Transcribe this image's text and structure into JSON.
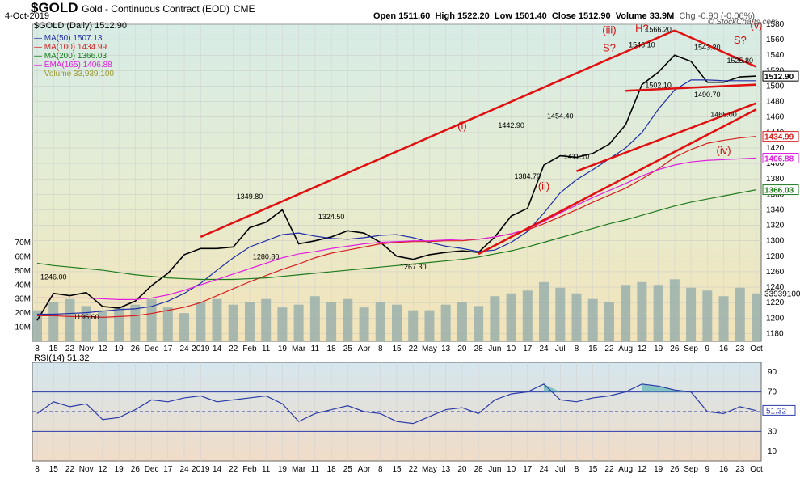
{
  "header": {
    "symbol": "$GOLD",
    "name": "Gold - Continuous Contract (EOD)",
    "exchange": "CME",
    "date": "4-Oct-2019",
    "open_label": "Open",
    "open": "1511.60",
    "high_label": "High",
    "high": "1522.20",
    "low_label": "Low",
    "low": "1501.40",
    "close_label": "Close",
    "close": "1512.90",
    "volume_label": "Volume",
    "volume": "33.9M",
    "chg_label": "Chg",
    "chg": "-0.90 (-0.06%)",
    "credit": "© StockCharts.com"
  },
  "legend": {
    "main": "$GOLD (Daily) 1512.90",
    "items": [
      {
        "label": "MA(50) 1507.13",
        "color": "#1f2fa8"
      },
      {
        "label": "MA(100) 1434.99",
        "color": "#d62020"
      },
      {
        "label": "MA(200) 1366.03",
        "color": "#1d7a1d"
      },
      {
        "label": "EMA(165) 1406.88",
        "color": "#e020e0"
      },
      {
        "label": "Volume 33,939,100",
        "color": "#999933"
      }
    ]
  },
  "rsi_legend": "RSI(14) 51.32",
  "chart_data": [
    {
      "type": "line",
      "title": "$GOLD (Daily)",
      "x": [
        "Oct 8",
        "Oct 15",
        "Oct 22",
        "Nov",
        "Nov 12",
        "Nov 19",
        "Nov 26",
        "Dec",
        "Dec 17",
        "Dec 24",
        "2019",
        "Jan 14",
        "Jan 22",
        "Feb",
        "Feb 11",
        "Feb 19",
        "Mar",
        "Mar 11",
        "Mar 18",
        "Mar 25",
        "Apr",
        "Apr 8",
        "Apr 15",
        "Apr 22",
        "May",
        "May 13",
        "May 20",
        "May 28",
        "Jun",
        "Jun 10",
        "Jun 17",
        "Jun 24",
        "Jul",
        "Jul 8",
        "Jul 15",
        "Jul 22",
        "Aug",
        "Aug 12",
        "Aug 19",
        "Aug 26",
        "Sep",
        "Sep 9",
        "Sep 16",
        "Sep 23",
        "Oct"
      ],
      "series": [
        {
          "name": "$GOLD",
          "values": [
            1197,
            1232,
            1229,
            1233,
            1215,
            1213,
            1222,
            1242,
            1258,
            1282,
            1290,
            1290,
            1292,
            1317,
            1324,
            1340,
            1296,
            1300,
            1305,
            1313,
            1310,
            1298,
            1280,
            1276,
            1282,
            1285,
            1287,
            1285,
            1305,
            1332,
            1342,
            1398,
            1410,
            1408,
            1413,
            1425,
            1450,
            1502,
            1518,
            1540,
            1532,
            1505,
            1505,
            1512,
            1513
          ]
        },
        {
          "name": "MA(50)",
          "values": [
            1205,
            1205,
            1206,
            1207,
            1209,
            1211,
            1212,
            1215,
            1222,
            1232,
            1245,
            1262,
            1278,
            1292,
            1300,
            1308,
            1310,
            1306,
            1303,
            1302,
            1304,
            1307,
            1308,
            1304,
            1298,
            1293,
            1290,
            1286,
            1288,
            1298,
            1312,
            1336,
            1362,
            1379,
            1392,
            1406,
            1420,
            1440,
            1470,
            1495,
            1508,
            1508,
            1507,
            1507,
            1507
          ]
        },
        {
          "name": "MA(100)",
          "values": [
            1203,
            1203,
            1202,
            1202,
            1201,
            1202,
            1203,
            1206,
            1210,
            1214,
            1220,
            1229,
            1238,
            1247,
            1255,
            1263,
            1270,
            1278,
            1284,
            1288,
            1292,
            1296,
            1298,
            1299,
            1299,
            1300,
            1300,
            1302,
            1305,
            1309,
            1314,
            1322,
            1331,
            1340,
            1350,
            1359,
            1368,
            1380,
            1393,
            1408,
            1418,
            1426,
            1430,
            1433,
            1435
          ]
        },
        {
          "name": "MA(200)",
          "values": [
            1271,
            1268,
            1266,
            1264,
            1262,
            1259,
            1256,
            1254,
            1252,
            1251,
            1250,
            1250,
            1250,
            1251,
            1252,
            1254,
            1256,
            1258,
            1260,
            1262,
            1264,
            1266,
            1268,
            1270,
            1272,
            1274,
            1276,
            1279,
            1283,
            1287,
            1292,
            1298,
            1304,
            1310,
            1316,
            1322,
            1327,
            1333,
            1339,
            1345,
            1350,
            1354,
            1358,
            1362,
            1366
          ]
        },
        {
          "name": "EMA(165)",
          "values": [
            1226,
            1226,
            1226,
            1226,
            1225,
            1224,
            1224,
            1226,
            1230,
            1236,
            1243,
            1250,
            1257,
            1264,
            1271,
            1278,
            1283,
            1286,
            1290,
            1293,
            1296,
            1298,
            1299,
            1300,
            1300,
            1301,
            1302,
            1302,
            1305,
            1309,
            1315,
            1325,
            1336,
            1346,
            1356,
            1365,
            1374,
            1384,
            1392,
            1398,
            1402,
            1404,
            1405,
            1406,
            1407
          ]
        }
      ],
      "annotations": [
        "1246.00",
        "1196.60",
        "1349.80",
        "1280.80",
        "1324.50",
        "1267.30",
        "1442.90",
        "1384.70",
        "1454.40",
        "1411.10",
        "1546.10",
        "1566.20",
        "1502.10",
        "1490.70",
        "1543.30",
        "1525.80",
        "1465.00",
        "(i)",
        "(ii)",
        "(iii)",
        "(iv)",
        "(v)",
        "S?",
        "H?",
        "S?"
      ],
      "ylim": [
        1170,
        1580
      ],
      "yticks": [
        1180,
        1200,
        1220,
        1240,
        1260,
        1280,
        1300,
        1320,
        1340,
        1360,
        1380,
        1400,
        1420,
        1440,
        1460,
        1480,
        1500,
        1520,
        1540,
        1560,
        1580
      ],
      "price_tags": [
        "1512.90",
        "1434.99",
        "1406.88",
        "1366.03"
      ],
      "grid": true
    },
    {
      "type": "bar",
      "title": "Volume",
      "categories": [
        "Oct 8",
        "Oct 15",
        "Oct 22",
        "Nov",
        "Nov 12",
        "Nov 19",
        "Nov 26",
        "Dec",
        "Dec 17",
        "Dec 24",
        "2019",
        "Jan 14",
        "Jan 22",
        "Feb",
        "Feb 11",
        "Feb 19",
        "Mar",
        "Mar 11",
        "Mar 18",
        "Mar 25",
        "Apr",
        "Apr 8",
        "Apr 15",
        "Apr 22",
        "May",
        "May 13",
        "May 20",
        "May 28",
        "Jun",
        "Jun 10",
        "Jun 17",
        "Jun 24",
        "Jul",
        "Jul 8",
        "Jul 15",
        "Jul 22",
        "Aug",
        "Aug 12",
        "Aug 19",
        "Aug 26",
        "Sep",
        "Sep 9",
        "Sep 16",
        "Sep 23",
        "Oct"
      ],
      "values": [
        22,
        28,
        30,
        25,
        22,
        24,
        26,
        30,
        24,
        20,
        28,
        30,
        26,
        28,
        30,
        24,
        26,
        32,
        28,
        30,
        24,
        28,
        26,
        22,
        22,
        26,
        28,
        25,
        32,
        34,
        36,
        42,
        38,
        34,
        30,
        28,
        40,
        42,
        40,
        44,
        38,
        36,
        32,
        38,
        34
      ],
      "ylabels": [
        "10M",
        "20M",
        "30M",
        "40M",
        "50M",
        "60M",
        "70M"
      ],
      "ylim": [
        0,
        70
      ],
      "last_value_tag": "33939100"
    },
    {
      "type": "line",
      "title": "RSI(14)",
      "x": [
        "Oct 8",
        "Oct 15",
        "Oct 22",
        "Nov",
        "Nov 12",
        "Nov 19",
        "Nov 26",
        "Dec",
        "Dec 17",
        "Dec 24",
        "2019",
        "Jan 14",
        "Jan 22",
        "Feb",
        "Feb 11",
        "Feb 19",
        "Mar",
        "Mar 11",
        "Mar 18",
        "Mar 25",
        "Apr",
        "Apr 8",
        "Apr 15",
        "Apr 22",
        "May",
        "May 13",
        "May 20",
        "May 28",
        "Jun",
        "Jun 10",
        "Jun 17",
        "Jun 24",
        "Jul",
        "Jul 8",
        "Jul 15",
        "Jul 22",
        "Aug",
        "Aug 12",
        "Aug 19",
        "Aug 26",
        "Sep",
        "Sep 9",
        "Sep 16",
        "Sep 23",
        "Oct"
      ],
      "series": [
        {
          "name": "RSI(14)",
          "values": [
            48,
            60,
            55,
            58,
            42,
            44,
            52,
            62,
            60,
            64,
            66,
            60,
            62,
            64,
            66,
            58,
            40,
            48,
            52,
            56,
            50,
            48,
            40,
            38,
            45,
            52,
            54,
            48,
            62,
            68,
            70,
            78,
            62,
            60,
            64,
            66,
            70,
            78,
            76,
            72,
            70,
            50,
            48,
            55,
            51
          ]
        }
      ],
      "ylim": [
        0,
        100
      ],
      "yticks": [
        10,
        30,
        50,
        70,
        90
      ],
      "guides": [
        30,
        50,
        70
      ],
      "last_value_tag": "51.32"
    }
  ]
}
